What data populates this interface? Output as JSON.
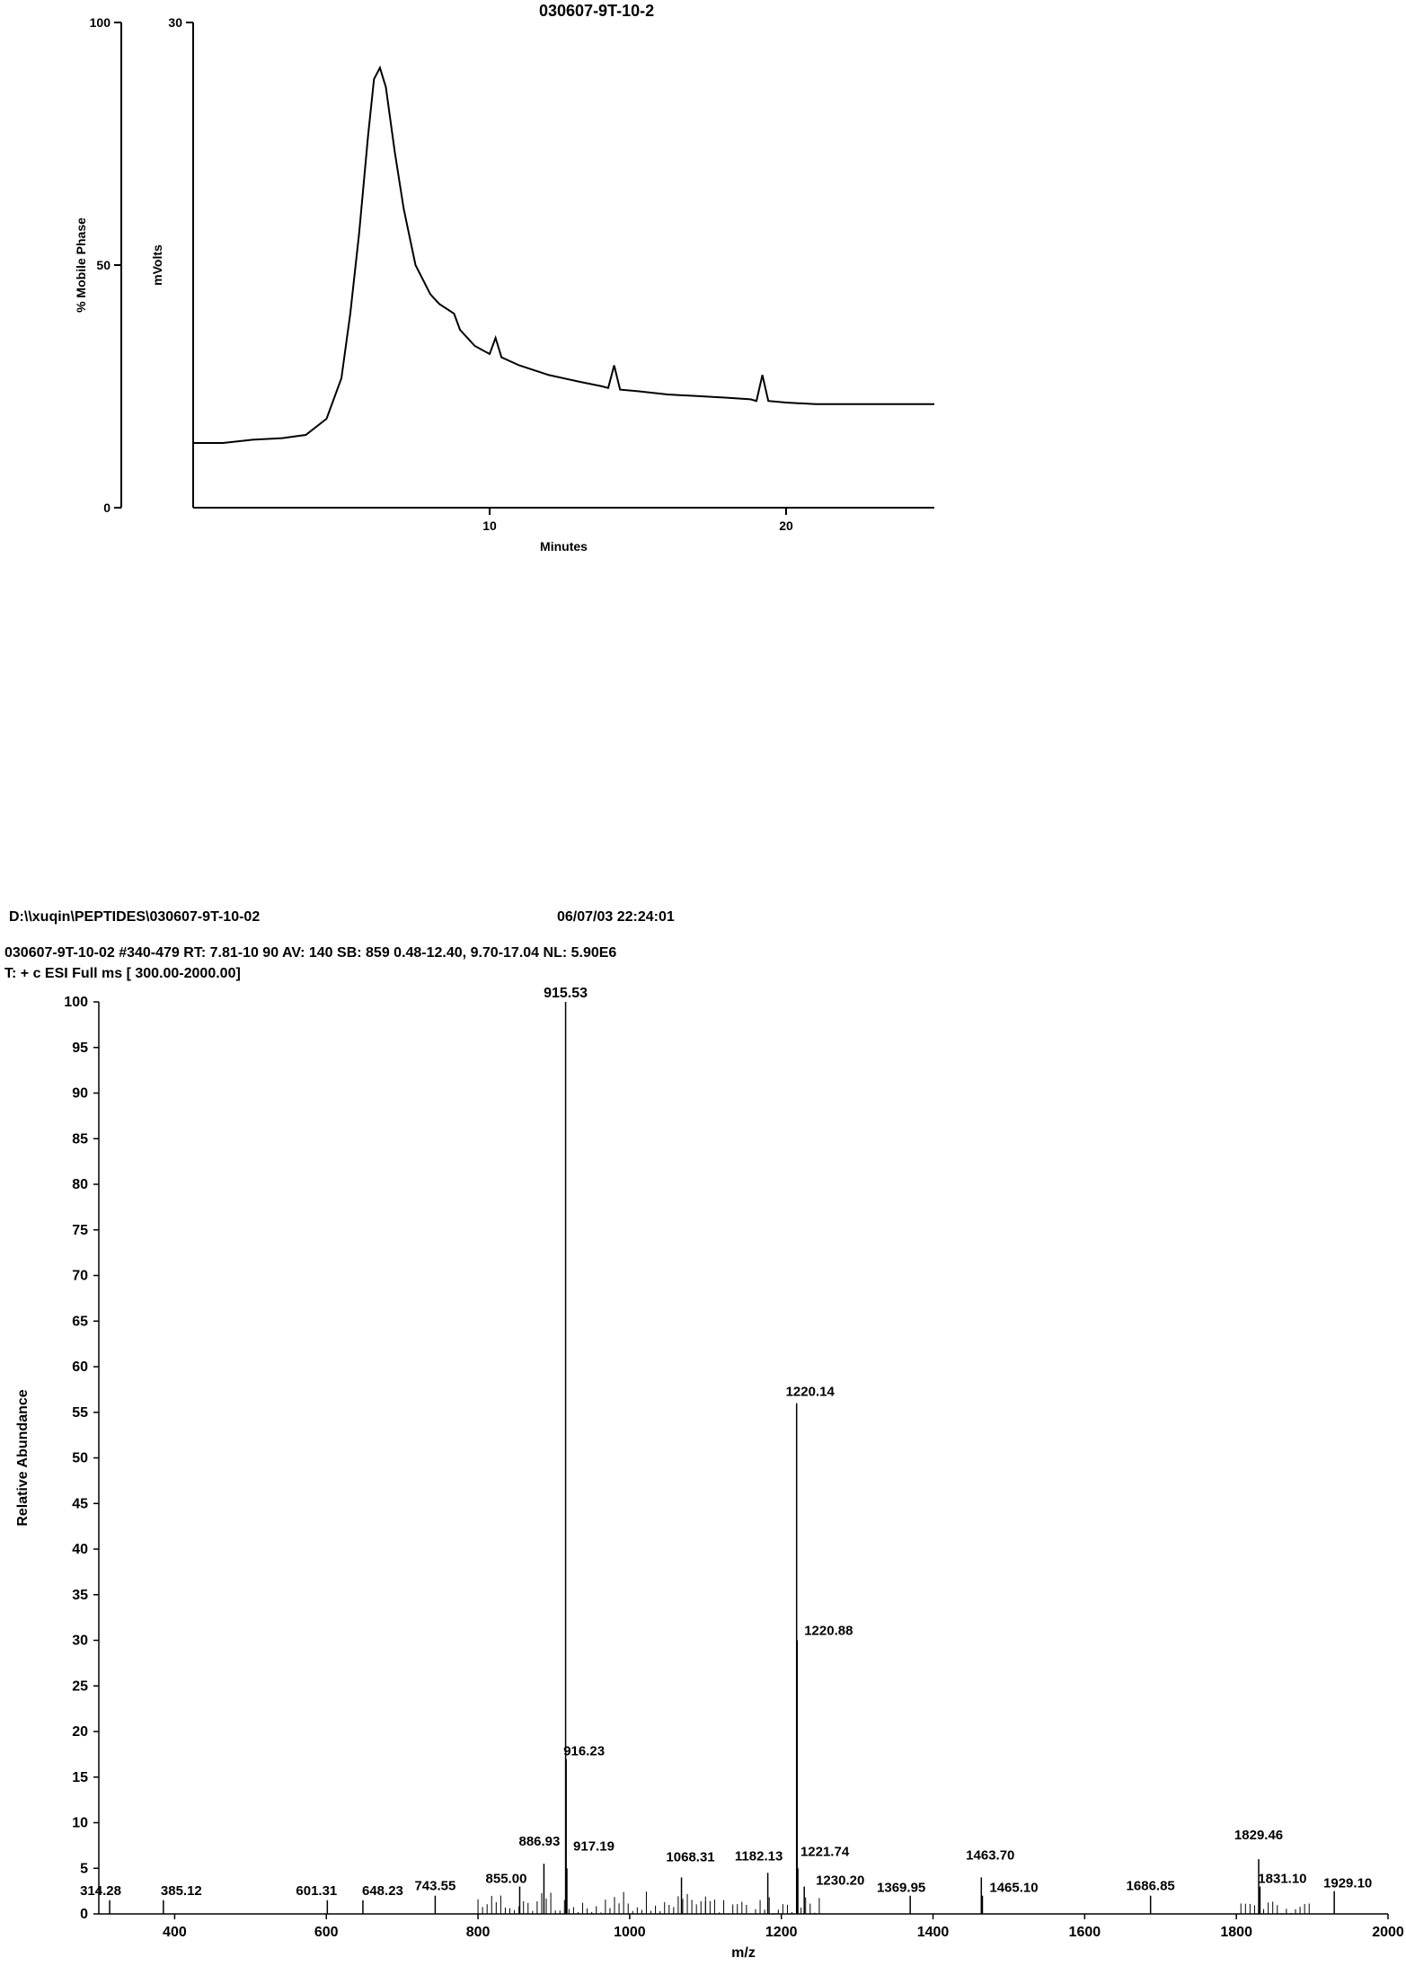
{
  "chromatogram": {
    "title": "030607-9T-10-2",
    "title_fontsize": 18,
    "left_axis": {
      "label": "% Mobile Phase",
      "ticks": [
        0,
        50,
        100
      ],
      "fontsize": 14
    },
    "inner_axis": {
      "label": "mVolts",
      "ticks": [
        30
      ],
      "fontsize": 14
    },
    "x_axis": {
      "label": "Minutes",
      "ticks": [
        10,
        20
      ],
      "fontsize": 14
    },
    "xlim": [
      0,
      25
    ],
    "ylim_left": [
      0,
      100
    ],
    "ylim_inner": [
      0,
      30
    ],
    "line_color": "#000000",
    "line_width": 2,
    "background_color": "#ffffff",
    "data_inner_mvolts": [
      [
        0.0,
        4.0
      ],
      [
        1.0,
        4.0
      ],
      [
        2.0,
        4.2
      ],
      [
        3.0,
        4.3
      ],
      [
        3.8,
        4.5
      ],
      [
        4.5,
        5.5
      ],
      [
        5.0,
        8.0
      ],
      [
        5.3,
        12.0
      ],
      [
        5.6,
        17.0
      ],
      [
        5.9,
        23.0
      ],
      [
        6.1,
        26.5
      ],
      [
        6.3,
        27.2
      ],
      [
        6.5,
        26.0
      ],
      [
        6.8,
        22.0
      ],
      [
        7.1,
        18.5
      ],
      [
        7.5,
        15.0
      ],
      [
        8.0,
        13.2
      ],
      [
        8.3,
        12.6
      ],
      [
        8.8,
        12.0
      ],
      [
        9.0,
        11.0
      ],
      [
        9.5,
        10.0
      ],
      [
        10.0,
        9.5
      ],
      [
        10.2,
        10.5
      ],
      [
        10.4,
        9.3
      ],
      [
        11.0,
        8.8
      ],
      [
        12.0,
        8.2
      ],
      [
        13.0,
        7.8
      ],
      [
        13.8,
        7.5
      ],
      [
        14.0,
        7.4
      ],
      [
        14.2,
        8.8
      ],
      [
        14.4,
        7.3
      ],
      [
        15.0,
        7.2
      ],
      [
        16.0,
        7.0
      ],
      [
        17.0,
        6.9
      ],
      [
        18.0,
        6.8
      ],
      [
        18.8,
        6.7
      ],
      [
        19.0,
        6.6
      ],
      [
        19.2,
        8.2
      ],
      [
        19.4,
        6.6
      ],
      [
        20.0,
        6.5
      ],
      [
        21.0,
        6.4
      ],
      [
        22.0,
        6.4
      ],
      [
        23.0,
        6.4
      ],
      [
        24.0,
        6.4
      ],
      [
        25.0,
        6.4
      ]
    ]
  },
  "ms_header": {
    "path": "D:\\\\xuqin\\PEPTIDES\\030607-9T-10-02",
    "timestamp": "06/07/03 22:24:01",
    "line2": "030607-9T-10-02 #340-479  RT: 7.81-10 90  AV: 140  SB: 859 0.48-12.40, 9.70-17.04  NL: 5.90E6",
    "line3": "T: + c ESI Full ms [ 300.00-2000.00]",
    "fontsize": 16
  },
  "ms_spectrum": {
    "xlim": [
      300,
      2000
    ],
    "ylim": [
      0,
      100
    ],
    "xlabel": "m/z",
    "ylabel": "Relative Abundance",
    "label_fontsize": 16,
    "tick_fontsize": 16,
    "yticks": [
      0,
      5,
      10,
      15,
      20,
      25,
      30,
      35,
      40,
      45,
      50,
      55,
      60,
      65,
      70,
      75,
      80,
      85,
      90,
      95,
      100
    ],
    "xticks": [
      400,
      600,
      800,
      1000,
      1200,
      1400,
      1600,
      1800,
      2000
    ],
    "line_color": "#000000",
    "background_color": "#ffffff",
    "base_peak_label": "915.53",
    "peaks": [
      {
        "mz": 314.28,
        "intensity": 1.5,
        "label": "314.28"
      },
      {
        "mz": 385.12,
        "intensity": 1.5,
        "label": "385.12"
      },
      {
        "mz": 601.31,
        "intensity": 1.5,
        "label": "601.31"
      },
      {
        "mz": 648.23,
        "intensity": 1.5,
        "label": "648.23"
      },
      {
        "mz": 743.55,
        "intensity": 2.0,
        "label": "743.55"
      },
      {
        "mz": 855.0,
        "intensity": 3.0,
        "label": "855.00"
      },
      {
        "mz": 886.93,
        "intensity": 5.5,
        "label": "886.93"
      },
      {
        "mz": 915.53,
        "intensity": 100.0,
        "label": ""
      },
      {
        "mz": 916.23,
        "intensity": 17.0,
        "label": "916.23"
      },
      {
        "mz": 917.19,
        "intensity": 5.0,
        "label": "917.19"
      },
      {
        "mz": 1068.31,
        "intensity": 4.0,
        "label": "1068.31"
      },
      {
        "mz": 1182.13,
        "intensity": 4.5,
        "label": "1182.13"
      },
      {
        "mz": 1220.14,
        "intensity": 56.0,
        "label": "1220.14"
      },
      {
        "mz": 1220.88,
        "intensity": 30.0,
        "label": "1220.88"
      },
      {
        "mz": 1221.74,
        "intensity": 5.0,
        "label": "1221.74"
      },
      {
        "mz": 1230.2,
        "intensity": 3.0,
        "label": "1230.20"
      },
      {
        "mz": 1369.95,
        "intensity": 2.0,
        "label": "1369.95"
      },
      {
        "mz": 1463.7,
        "intensity": 4.0,
        "label": "1463.70"
      },
      {
        "mz": 1465.1,
        "intensity": 2.0,
        "label": "1465.10"
      },
      {
        "mz": 1686.85,
        "intensity": 2.0,
        "label": "1686.85"
      },
      {
        "mz": 1829.46,
        "intensity": 6.0,
        "label": "1829.46"
      },
      {
        "mz": 1831.1,
        "intensity": 3.0,
        "label": "1831.10"
      },
      {
        "mz": 1929.1,
        "intensity": 2.5,
        "label": "1929.10"
      }
    ],
    "noise_regions": [
      {
        "from": 800,
        "to": 1100,
        "max_intensity": 2.5
      },
      {
        "from": 1100,
        "to": 1250,
        "max_intensity": 2.0
      },
      {
        "from": 1800,
        "to": 1900,
        "max_intensity": 1.5
      }
    ]
  }
}
